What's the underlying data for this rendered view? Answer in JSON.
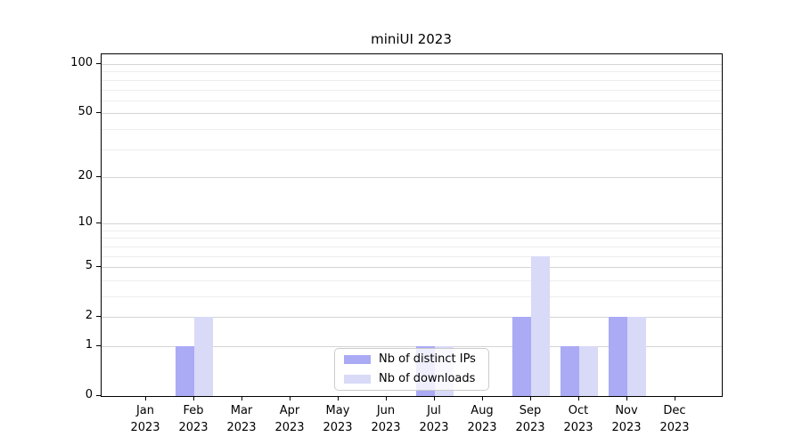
{
  "title": "miniUI 2023",
  "legend": {
    "items": [
      {
        "label": "Nb of distinct IPs",
        "color": "#aaaaf5"
      },
      {
        "label": "Nb of downloads",
        "color": "#d9d9f8"
      }
    ]
  },
  "chart_data": {
    "type": "bar",
    "title": "miniUI 2023",
    "categories": [
      {
        "month": "Jan",
        "year": "2023"
      },
      {
        "month": "Feb",
        "year": "2023"
      },
      {
        "month": "Mar",
        "year": "2023"
      },
      {
        "month": "Apr",
        "year": "2023"
      },
      {
        "month": "May",
        "year": "2023"
      },
      {
        "month": "Jun",
        "year": "2023"
      },
      {
        "month": "Jul",
        "year": "2023"
      },
      {
        "month": "Aug",
        "year": "2023"
      },
      {
        "month": "Sep",
        "year": "2023"
      },
      {
        "month": "Oct",
        "year": "2023"
      },
      {
        "month": "Nov",
        "year": "2023"
      },
      {
        "month": "Dec",
        "year": "2023"
      }
    ],
    "series": [
      {
        "name": "Nb of distinct IPs",
        "color": "#aaaaf5",
        "values": [
          0,
          1,
          0,
          0,
          0,
          0,
          1,
          0,
          2,
          1,
          2,
          0
        ]
      },
      {
        "name": "Nb of downloads",
        "color": "#d9d9f8",
        "values": [
          0,
          2,
          0,
          0,
          0,
          0,
          1,
          0,
          6,
          1,
          2,
          0
        ]
      }
    ],
    "xlabel": "",
    "ylabel": "",
    "y_scale": "log1p",
    "ylim": [
      0,
      115
    ],
    "y_major_ticks": [
      0,
      1,
      2,
      5,
      10,
      20,
      50,
      100
    ],
    "y_tick_labels": [
      "0",
      "1",
      "2",
      "5",
      "10",
      "20",
      "50",
      "100"
    ],
    "y_minor_gridlines": [
      3,
      4,
      6,
      7,
      8,
      9,
      30,
      40,
      60,
      70,
      80,
      90
    ],
    "grid": "horizontal",
    "legend_position": "lower center"
  }
}
